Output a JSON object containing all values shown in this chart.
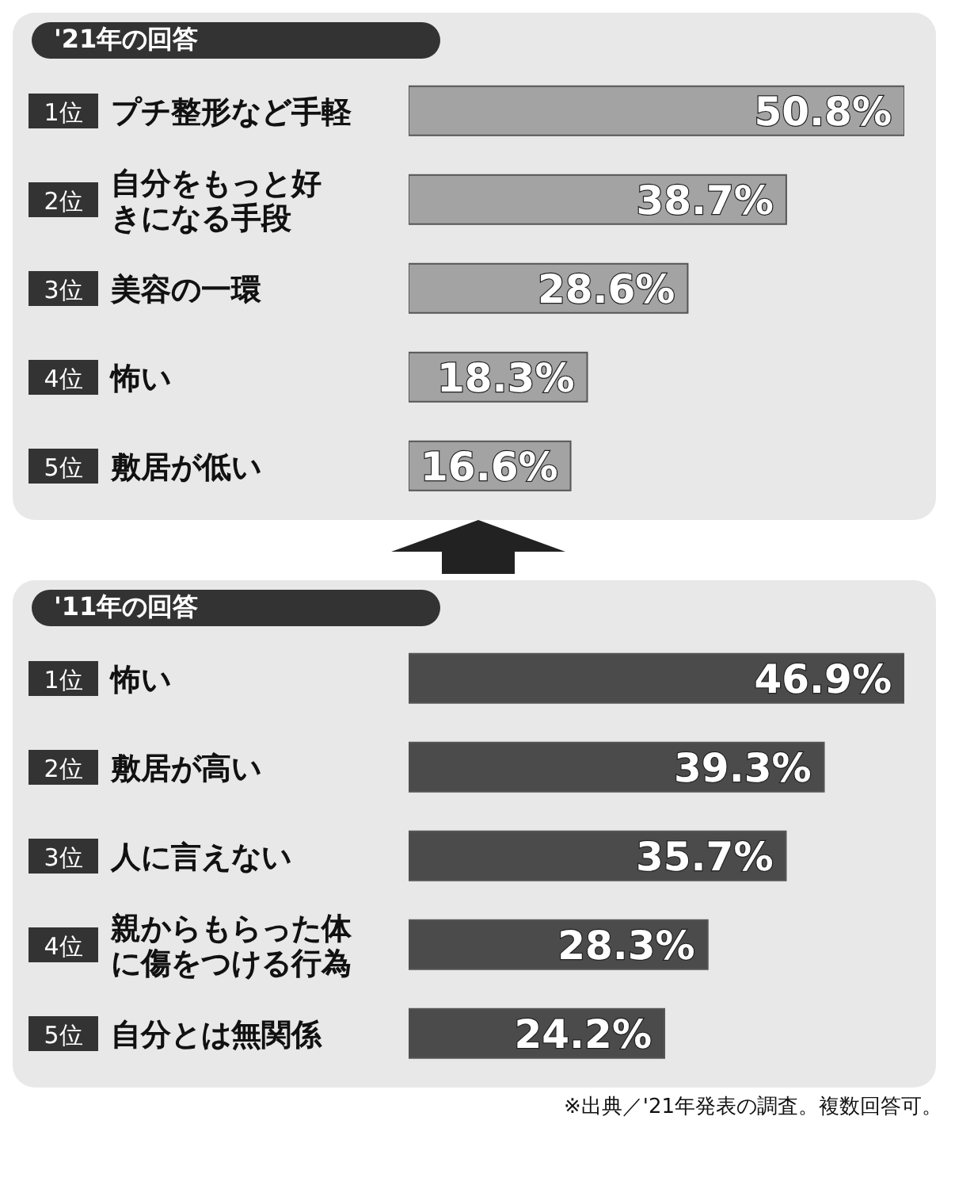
{
  "chart_data": [
    {
      "type": "bar",
      "orientation": "horizontal",
      "title": "'21年の回答",
      "categories": [
        "1位 プチ整形など手軽",
        "2位 自分をもっと好きになる手段",
        "3位 美容の一環",
        "4位 怖い",
        "5位 敷居が低い"
      ],
      "values": [
        50.8,
        38.7,
        28.6,
        18.3,
        16.6
      ],
      "value_labels": [
        "50.8%",
        "38.7%",
        "28.6%",
        "18.3%",
        "16.6%"
      ],
      "color": "#a3a3a3",
      "grid": false,
      "legend": false
    },
    {
      "type": "bar",
      "orientation": "horizontal",
      "title": "'11年の回答",
      "categories": [
        "1位 怖い",
        "2位 敷居が高い",
        "3位 人に言えない",
        "4位 親からもらった体に傷をつける行為",
        "5位 自分とは無関係"
      ],
      "values": [
        46.9,
        39.3,
        35.7,
        28.3,
        24.2
      ],
      "value_labels": [
        "46.9%",
        "39.3%",
        "35.7%",
        "28.3%",
        "24.2%"
      ],
      "color": "#4b4b4b",
      "grid": false,
      "legend": false,
      "annotations": [
        "※出典／'21年発表の調査。複数回答可。"
      ]
    }
  ]
}
